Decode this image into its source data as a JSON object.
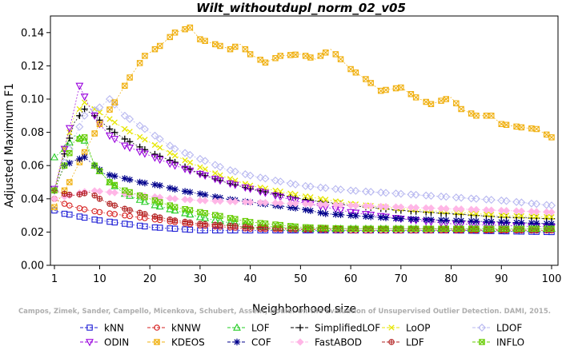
{
  "chart_data": {
    "type": "line",
    "title": "Wilt_withoutdupl_norm_02_v05",
    "xlabel": "Neighborhood size",
    "ylabel": "Adjusted Maximum F1",
    "xlim": [
      1,
      100
    ],
    "ylim": [
      0,
      0.15
    ],
    "x_ticks": [
      1,
      10,
      20,
      30,
      40,
      50,
      60,
      70,
      80,
      90,
      100
    ],
    "y_ticks": [
      0.0,
      0.02,
      0.04,
      0.06,
      0.08,
      0.1,
      0.12,
      0.14
    ],
    "y_tick_labels": [
      "0.00",
      "0.02",
      "0.04",
      "0.06",
      "0.08",
      "0.10",
      "0.12",
      "0.14"
    ],
    "grid": false,
    "legend_position": "bottom",
    "watermark": "Campos, Zimek, Sander, Campello, Micenkova, Schubert, Assent, Houle: On the Evaluation of Unsupervised Outlier Detection. DAMI, 2015.",
    "series": [
      {
        "name": "kNN",
        "color": "#1f1fd6",
        "marker": "square",
        "points": [
          [
            1,
            0.033
          ],
          [
            3,
            0.031
          ],
          [
            5,
            0.03
          ],
          [
            8,
            0.028
          ],
          [
            10,
            0.027
          ],
          [
            15,
            0.025
          ],
          [
            20,
            0.023
          ],
          [
            25,
            0.022
          ],
          [
            30,
            0.021
          ],
          [
            40,
            0.021
          ],
          [
            60,
            0.021
          ],
          [
            80,
            0.021
          ],
          [
            100,
            0.02
          ]
        ]
      },
      {
        "name": "kNNW",
        "color": "#d62020",
        "marker": "circle",
        "points": [
          [
            1,
            0.04
          ],
          [
            3,
            0.037
          ],
          [
            5,
            0.035
          ],
          [
            8,
            0.033
          ],
          [
            10,
            0.032
          ],
          [
            15,
            0.03
          ],
          [
            20,
            0.028
          ],
          [
            25,
            0.026
          ],
          [
            30,
            0.024
          ],
          [
            35,
            0.023
          ],
          [
            40,
            0.022
          ],
          [
            60,
            0.021
          ],
          [
            80,
            0.021
          ],
          [
            100,
            0.021
          ]
        ]
      },
      {
        "name": "LOF",
        "color": "#22cc22",
        "marker": "triangle-up",
        "points": [
          [
            1,
            0.065
          ],
          [
            3,
            0.07
          ],
          [
            5,
            0.078
          ],
          [
            7,
            0.075
          ],
          [
            9,
            0.06
          ],
          [
            12,
            0.05
          ],
          [
            15,
            0.043
          ],
          [
            20,
            0.037
          ],
          [
            25,
            0.033
          ],
          [
            30,
            0.029
          ],
          [
            35,
            0.026
          ],
          [
            40,
            0.024
          ],
          [
            50,
            0.022
          ],
          [
            60,
            0.022
          ],
          [
            80,
            0.022
          ],
          [
            100,
            0.022
          ]
        ]
      },
      {
        "name": "SimplifiedLOF",
        "color": "#000000",
        "marker": "plus",
        "points": [
          [
            1,
            0.045
          ],
          [
            3,
            0.067
          ],
          [
            5,
            0.086
          ],
          [
            7,
            0.094
          ],
          [
            9,
            0.09
          ],
          [
            12,
            0.082
          ],
          [
            15,
            0.076
          ],
          [
            20,
            0.068
          ],
          [
            25,
            0.062
          ],
          [
            30,
            0.055
          ],
          [
            35,
            0.05
          ],
          [
            40,
            0.046
          ],
          [
            50,
            0.04
          ],
          [
            60,
            0.036
          ],
          [
            70,
            0.033
          ],
          [
            80,
            0.031
          ],
          [
            90,
            0.029
          ],
          [
            100,
            0.028
          ]
        ]
      },
      {
        "name": "LoOP",
        "color": "#e6e600",
        "marker": "cross",
        "points": [
          [
            1,
            0.045
          ],
          [
            3,
            0.07
          ],
          [
            5,
            0.09
          ],
          [
            7,
            0.098
          ],
          [
            9,
            0.094
          ],
          [
            12,
            0.088
          ],
          [
            15,
            0.082
          ],
          [
            20,
            0.074
          ],
          [
            25,
            0.066
          ],
          [
            30,
            0.059
          ],
          [
            35,
            0.053
          ],
          [
            40,
            0.048
          ],
          [
            50,
            0.042
          ],
          [
            60,
            0.037
          ],
          [
            70,
            0.034
          ],
          [
            80,
            0.032
          ],
          [
            90,
            0.03
          ],
          [
            100,
            0.029
          ]
        ]
      },
      {
        "name": "LDOF",
        "color": "#b8b8f0",
        "marker": "diamond",
        "points": [
          [
            1,
            0.045
          ],
          [
            4,
            0.07
          ],
          [
            7,
            0.09
          ],
          [
            10,
            0.095
          ],
          [
            12,
            0.1
          ],
          [
            15,
            0.09
          ],
          [
            20,
            0.08
          ],
          [
            25,
            0.07
          ],
          [
            30,
            0.064
          ],
          [
            35,
            0.058
          ],
          [
            40,
            0.054
          ],
          [
            50,
            0.048
          ],
          [
            60,
            0.045
          ],
          [
            70,
            0.043
          ],
          [
            80,
            0.041
          ],
          [
            90,
            0.039
          ],
          [
            100,
            0.036
          ]
        ]
      },
      {
        "name": "ODIN",
        "color": "#9900dd",
        "marker": "triangle-down",
        "points": [
          [
            1,
            0.046
          ],
          [
            3,
            0.07
          ],
          [
            5,
            0.095
          ],
          [
            6,
            0.108
          ],
          [
            8,
            0.095
          ],
          [
            10,
            0.085
          ],
          [
            12,
            0.078
          ],
          [
            15,
            0.072
          ],
          [
            20,
            0.066
          ],
          [
            25,
            0.06
          ],
          [
            30,
            0.055
          ],
          [
            35,
            0.05
          ],
          [
            40,
            0.046
          ],
          [
            50,
            0.038
          ],
          [
            60,
            0.032
          ],
          [
            70,
            0.028
          ],
          [
            80,
            0.025
          ],
          [
            90,
            0.024
          ],
          [
            100,
            0.023
          ]
        ]
      },
      {
        "name": "KDEOS",
        "color": "#f0b010",
        "marker": "square-cross",
        "points": [
          [
            1,
            0.035
          ],
          [
            4,
            0.05
          ],
          [
            7,
            0.068
          ],
          [
            10,
            0.085
          ],
          [
            13,
            0.098
          ],
          [
            16,
            0.113
          ],
          [
            19,
            0.126
          ],
          [
            22,
            0.132
          ],
          [
            25,
            0.14
          ],
          [
            28,
            0.143
          ],
          [
            30,
            0.136
          ],
          [
            33,
            0.133
          ],
          [
            36,
            0.13
          ],
          [
            38,
            0.133
          ],
          [
            40,
            0.127
          ],
          [
            43,
            0.122
          ],
          [
            46,
            0.126
          ],
          [
            50,
            0.127
          ],
          [
            53,
            0.124
          ],
          [
            56,
            0.13
          ],
          [
            60,
            0.118
          ],
          [
            63,
            0.112
          ],
          [
            66,
            0.105
          ],
          [
            70,
            0.107
          ],
          [
            73,
            0.101
          ],
          [
            76,
            0.097
          ],
          [
            80,
            0.101
          ],
          [
            82,
            0.094
          ],
          [
            85,
            0.09
          ],
          [
            88,
            0.09
          ],
          [
            90,
            0.085
          ],
          [
            94,
            0.083
          ],
          [
            97,
            0.082
          ],
          [
            100,
            0.077
          ]
        ]
      },
      {
        "name": "COF",
        "color": "#00008b",
        "marker": "asterisk",
        "points": [
          [
            1,
            0.045
          ],
          [
            3,
            0.06
          ],
          [
            5,
            0.063
          ],
          [
            7,
            0.065
          ],
          [
            9,
            0.06
          ],
          [
            11,
            0.055
          ],
          [
            14,
            0.053
          ],
          [
            18,
            0.05
          ],
          [
            22,
            0.048
          ],
          [
            26,
            0.045
          ],
          [
            30,
            0.043
          ],
          [
            35,
            0.04
          ],
          [
            40,
            0.038
          ],
          [
            45,
            0.036
          ],
          [
            50,
            0.034
          ],
          [
            55,
            0.031
          ],
          [
            60,
            0.03
          ],
          [
            65,
            0.029
          ],
          [
            70,
            0.028
          ],
          [
            80,
            0.027
          ],
          [
            90,
            0.026
          ],
          [
            100,
            0.025
          ]
        ]
      },
      {
        "name": "FastABOD",
        "color": "#ffb6e6",
        "marker": "diamond-filled",
        "points": [
          [
            1,
            0.04
          ],
          [
            4,
            0.042
          ],
          [
            8,
            0.045
          ],
          [
            12,
            0.044
          ],
          [
            18,
            0.042
          ],
          [
            25,
            0.04
          ],
          [
            30,
            0.039
          ],
          [
            40,
            0.038
          ],
          [
            50,
            0.037
          ],
          [
            60,
            0.036
          ],
          [
            70,
            0.035
          ],
          [
            80,
            0.034
          ],
          [
            90,
            0.033
          ],
          [
            100,
            0.032
          ]
        ]
      },
      {
        "name": "LDF",
        "color": "#b22222",
        "marker": "circle-plus",
        "points": [
          [
            1,
            0.045
          ],
          [
            3,
            0.043
          ],
          [
            5,
            0.042
          ],
          [
            8,
            0.044
          ],
          [
            10,
            0.04
          ],
          [
            12,
            0.037
          ],
          [
            15,
            0.034
          ],
          [
            20,
            0.03
          ],
          [
            25,
            0.027
          ],
          [
            30,
            0.025
          ],
          [
            40,
            0.023
          ],
          [
            50,
            0.022
          ],
          [
            70,
            0.022
          ],
          [
            100,
            0.021
          ]
        ]
      },
      {
        "name": "INFLO",
        "color": "#66cc00",
        "marker": "square-x",
        "points": [
          [
            1,
            0.045
          ],
          [
            3,
            0.06
          ],
          [
            5,
            0.075
          ],
          [
            7,
            0.077
          ],
          [
            9,
            0.06
          ],
          [
            12,
            0.05
          ],
          [
            15,
            0.045
          ],
          [
            20,
            0.04
          ],
          [
            25,
            0.035
          ],
          [
            30,
            0.032
          ],
          [
            35,
            0.029
          ],
          [
            40,
            0.026
          ],
          [
            50,
            0.023
          ],
          [
            60,
            0.022
          ],
          [
            80,
            0.022
          ],
          [
            100,
            0.022
          ]
        ]
      }
    ]
  }
}
